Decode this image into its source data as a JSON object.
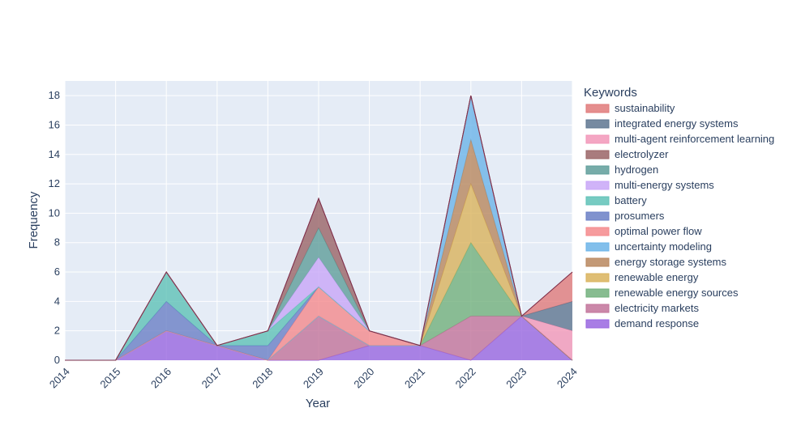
{
  "chart_data": {
    "type": "area",
    "stacked": true,
    "xlabel": "Year",
    "ylabel": "Frequency",
    "x": [
      2014,
      2015,
      2016,
      2017,
      2018,
      2019,
      2020,
      2021,
      2022,
      2023,
      2024
    ],
    "xlim": [
      2014,
      2024
    ],
    "ylim": [
      0,
      19
    ],
    "y_ticks": [
      0,
      2,
      4,
      6,
      8,
      10,
      12,
      14,
      16,
      18
    ],
    "grid": true,
    "legend_title": "Keywords",
    "legend_position": "right",
    "series": [
      {
        "name": "demand response",
        "color": "#9966e0",
        "values": [
          0,
          0,
          2,
          1,
          0,
          0,
          1,
          1,
          0,
          3,
          0
        ]
      },
      {
        "name": "electricity markets",
        "color": "#c2739a",
        "values": [
          0,
          0,
          0,
          0,
          0,
          3,
          0,
          0,
          3,
          0,
          0
        ]
      },
      {
        "name": "renewable energy sources",
        "color": "#72b07c",
        "values": [
          0,
          0,
          0,
          0,
          0,
          0,
          0,
          0,
          5,
          0,
          0
        ]
      },
      {
        "name": "renewable energy",
        "color": "#d9b35c",
        "values": [
          0,
          0,
          0,
          0,
          0,
          0,
          0,
          0,
          4,
          0,
          0
        ]
      },
      {
        "name": "energy storage systems",
        "color": "#b8875e",
        "values": [
          0,
          0,
          0,
          0,
          0,
          0,
          0,
          0,
          3,
          0,
          0
        ]
      },
      {
        "name": "uncertainty modeling",
        "color": "#6cb4e8",
        "values": [
          0,
          0,
          0,
          0,
          0,
          0,
          0,
          0,
          3,
          0,
          0
        ]
      },
      {
        "name": "optimal power flow",
        "color": "#f4898c",
        "values": [
          0,
          0,
          0,
          0,
          0,
          2,
          1,
          0,
          0,
          0,
          0
        ]
      },
      {
        "name": "prosumers",
        "color": "#6a7fc6",
        "values": [
          0,
          0,
          2,
          0,
          1,
          0,
          0,
          0,
          0,
          0,
          0
        ]
      },
      {
        "name": "battery",
        "color": "#5fc2b7",
        "values": [
          0,
          0,
          2,
          0,
          1,
          0,
          0,
          0,
          0,
          0,
          0
        ]
      },
      {
        "name": "multi-energy systems",
        "color": "#c8a6f7",
        "values": [
          0,
          0,
          0,
          0,
          0,
          2,
          0,
          0,
          0,
          0,
          0
        ]
      },
      {
        "name": "hydrogen",
        "color": "#5f9e9a",
        "values": [
          0,
          0,
          0,
          0,
          0,
          2,
          0,
          0,
          0,
          0,
          0
        ]
      },
      {
        "name": "electrolyzer",
        "color": "#9a6466",
        "values": [
          0,
          0,
          0,
          0,
          0,
          2,
          0,
          0,
          0,
          0,
          0
        ]
      },
      {
        "name": "multi-agent reinforcement learning",
        "color": "#f297b8",
        "values": [
          0,
          0,
          0,
          0,
          0,
          0,
          0,
          0,
          0,
          0,
          2
        ]
      },
      {
        "name": "integrated energy systems",
        "color": "#5e7590",
        "values": [
          0,
          0,
          0,
          0,
          0,
          0,
          0,
          0,
          0,
          0,
          2
        ]
      },
      {
        "name": "sustainability",
        "color": "#e07a7a",
        "values": [
          0,
          0,
          0,
          0,
          0,
          0,
          0,
          0,
          0,
          0,
          2
        ]
      }
    ]
  }
}
